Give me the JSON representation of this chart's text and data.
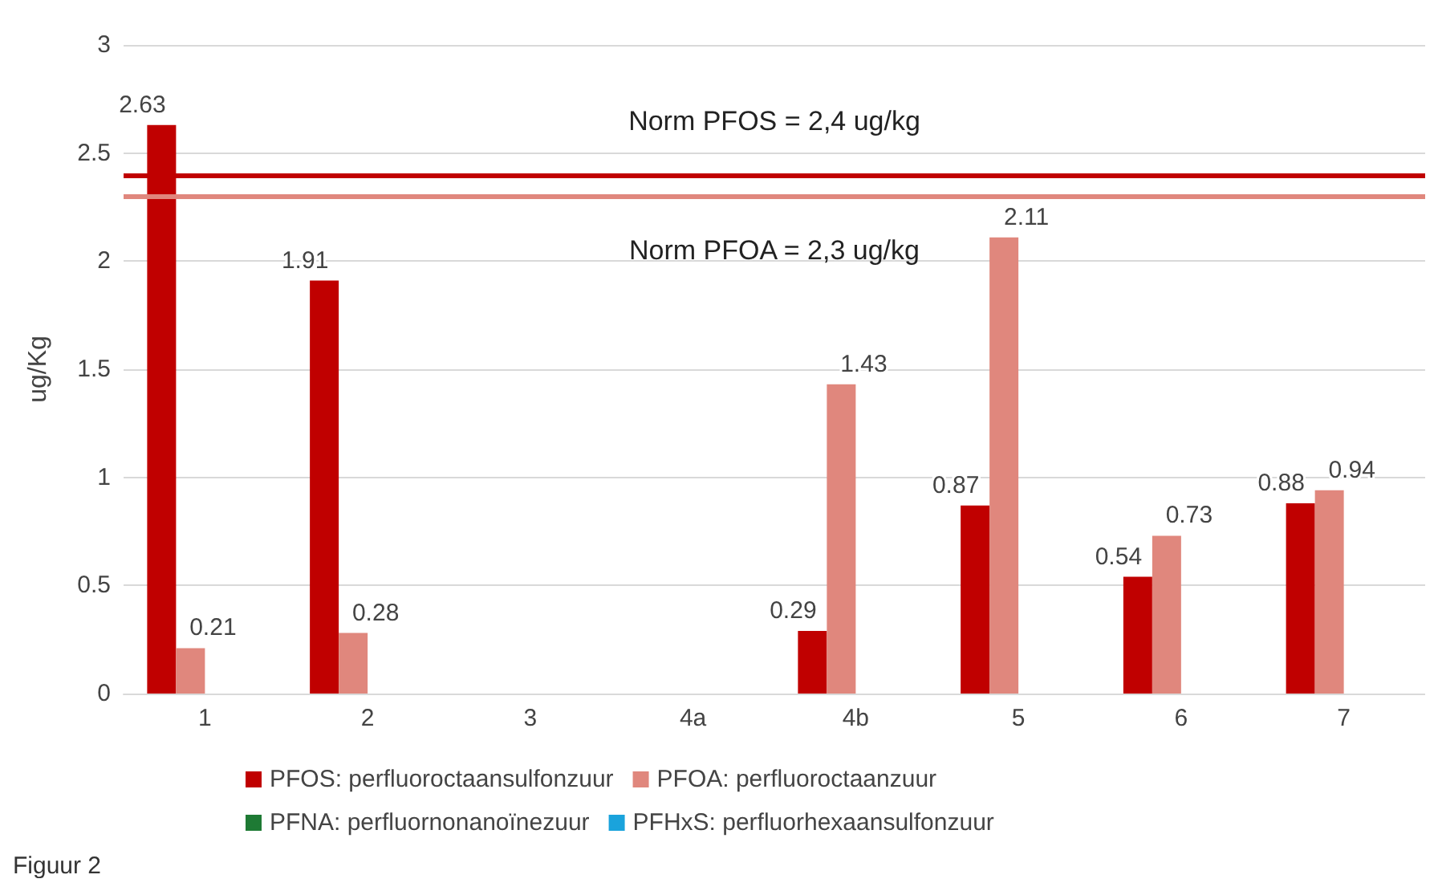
{
  "chart_data": {
    "type": "bar",
    "ylabel": "ug/Kg",
    "categories": [
      "1",
      "2",
      "3",
      "4a",
      "4b",
      "5",
      "6",
      "7"
    ],
    "series": [
      {
        "name": "PFOS: perfluoroctaansulfonzuur",
        "color": "#c00000",
        "values": [
          2.63,
          1.91,
          null,
          null,
          0.29,
          0.87,
          0.54,
          0.88
        ]
      },
      {
        "name": "PFOA: perfluoroctaanzuur",
        "color": "#e0877d",
        "values": [
          0.21,
          0.28,
          null,
          null,
          1.43,
          2.11,
          0.73,
          0.94
        ]
      },
      {
        "name": "PFNA: perfluornonanoïnezuur",
        "color": "#1e7a34",
        "values": [
          null,
          null,
          null,
          null,
          null,
          null,
          null,
          null
        ]
      },
      {
        "name": "PFHxS: perfluorhexaansulfonzuur",
        "color": "#1aa3dc",
        "values": [
          null,
          null,
          null,
          null,
          null,
          null,
          null,
          null
        ]
      }
    ],
    "ylim": [
      0,
      3
    ],
    "yticks": [
      0,
      0.5,
      1,
      1.5,
      2,
      2.5,
      3
    ],
    "grid": "y",
    "legend": "bottom",
    "data_labels": true,
    "ref_lines": [
      {
        "axis": "y",
        "value": 2.4,
        "label": "Norm PFOS = 2,4 ug/kg",
        "color": "#c00000"
      },
      {
        "axis": "y",
        "value": 2.3,
        "label": "Norm PFOA = 2,3 ug/kg",
        "color": "#e0877d"
      }
    ],
    "annotations": [
      "Figuur 2"
    ]
  }
}
